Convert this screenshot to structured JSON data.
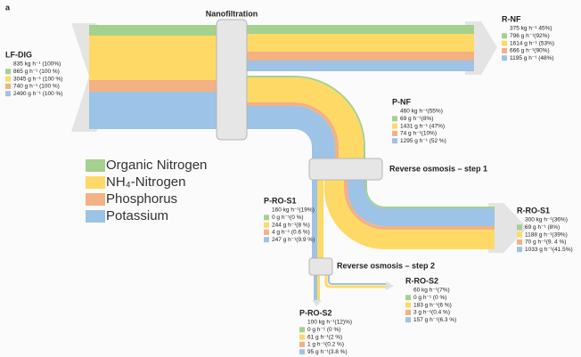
{
  "panel_label": "a",
  "units": [
    {
      "label": "Nanofiltration"
    },
    {
      "label": "Reverse osmosis – step 1"
    },
    {
      "label": "Reverse osmosis – step 2"
    }
  ],
  "legend": [
    "Organic Nitrogen",
    "NH₄-Nitrogen",
    "Phosphorus",
    "Potassium"
  ],
  "nodes": [
    {
      "name": "LF-DIG",
      "lines": [
        "835 kg h⁻¹ (100%)",
        "865 g h⁻¹ (100 %)",
        "3045 g h⁻¹ (100 %)",
        "740 g h⁻¹ (100 %)",
        "2490 g h⁻¹ (100 %)"
      ]
    },
    {
      "name": "R-NF",
      "lines": [
        "375 kg h⁻¹ 45%)",
        "796 g h⁻¹(92%)",
        "1614 g h⁻¹ (53%)",
        "666 g h⁻¹(90%)",
        "1195 g h⁻¹ (48%)"
      ]
    },
    {
      "name": "P-NF",
      "lines": [
        "460 kg h⁻¹(55%)",
        "69 g h⁻¹(8%)",
        "1431 g h⁻¹ (47%)",
        "74 g h⁻¹(10%)",
        "1295 g h⁻¹ (52 %)"
      ]
    },
    {
      "name": "R-RO-S1",
      "lines": [
        "300 kg h⁻¹(36%)",
        "69 g h⁻¹ (8%)",
        "1188 g h⁻¹(39%)",
        "70 g h⁻¹(9. 4 %)",
        "1033 g h⁻¹(41.5%)"
      ]
    },
    {
      "name": "P-RO-S1",
      "lines": [
        "160 kg h⁻¹(19%)",
        "0 g h⁻¹(0 %)",
        "244 g h⁻¹(8 %)",
        "4 g h⁻¹ (0.6 %)",
        "247 g h⁻¹(9.9 %)"
      ]
    },
    {
      "name": "R-RO-S2",
      "lines": [
        "60 kg h⁻¹(7%)",
        "0 g h⁻¹ (0 %)",
        "183 g h⁻¹(6 %)",
        "3 g h⁻¹(0.4 %)",
        "157 g h⁻¹(6.3 %)"
      ]
    },
    {
      "name": "P-RO-S2",
      "lines": [
        "100 kg h⁻¹(12)%)",
        "0 g h⁻¹ (0 %)",
        "61 g h⁻¹(2 %)",
        "1 g h⁻¹(0.2 %)",
        "95 g h⁻¹(3.8 %)"
      ]
    }
  ]
}
